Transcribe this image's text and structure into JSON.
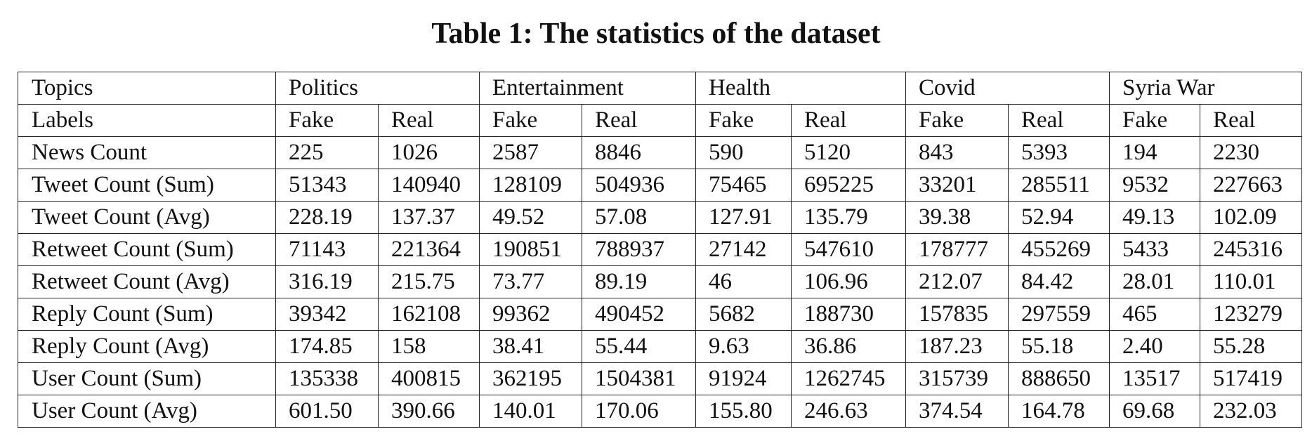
{
  "caption": "Table 1: The statistics of the dataset",
  "table": {
    "header_label": "Topics",
    "topics": [
      "Politics",
      "Entertainment",
      "Health",
      "Covid",
      "Syria War"
    ],
    "labels_label": "Labels",
    "labels": [
      "Fake",
      "Real",
      "Fake",
      "Real",
      "Fake",
      "Real",
      "Fake",
      "Real",
      "Fake",
      "Real"
    ],
    "rows": [
      {
        "metric": "News Count",
        "values": [
          "225",
          "1026",
          "2587",
          "8846",
          "590",
          "5120",
          "843",
          "5393",
          "194",
          "2230"
        ]
      },
      {
        "metric": "Tweet Count (Sum)",
        "values": [
          "51343",
          "140940",
          "128109",
          "504936",
          "75465",
          "695225",
          "33201",
          "285511",
          "9532",
          "227663"
        ]
      },
      {
        "metric": "Tweet Count (Avg)",
        "values": [
          "228.19",
          "137.37",
          "49.52",
          "57.08",
          "127.91",
          "135.79",
          "39.38",
          "52.94",
          "49.13",
          "102.09"
        ]
      },
      {
        "metric": "Retweet Count (Sum)",
        "values": [
          "71143",
          "221364",
          "190851",
          "788937",
          "27142",
          "547610",
          "178777",
          "455269",
          "5433",
          "245316"
        ]
      },
      {
        "metric": "Retweet Count (Avg)",
        "values": [
          "316.19",
          "215.75",
          "73.77",
          "89.19",
          "46",
          "106.96",
          "212.07",
          "84.42",
          "28.01",
          "110.01"
        ]
      },
      {
        "metric": "Reply Count (Sum)",
        "values": [
          "39342",
          "162108",
          "99362",
          "490452",
          "5682",
          "188730",
          "157835",
          "297559",
          "465",
          "123279"
        ]
      },
      {
        "metric": "Reply Count (Avg)",
        "values": [
          "174.85",
          "158",
          "38.41",
          "55.44",
          "9.63",
          "36.86",
          "187.23",
          "55.18",
          "2.40",
          "55.28"
        ]
      },
      {
        "metric": "User Count (Sum)",
        "values": [
          "135338",
          "400815",
          "362195",
          "1504381",
          "91924",
          "1262745",
          "315739",
          "888650",
          "13517",
          "517419"
        ]
      },
      {
        "metric": "User Count (Avg)",
        "values": [
          "601.50",
          "390.66",
          "140.01",
          "170.06",
          "155.80",
          "246.63",
          "374.54",
          "164.78",
          "69.68",
          "232.03"
        ]
      }
    ]
  }
}
